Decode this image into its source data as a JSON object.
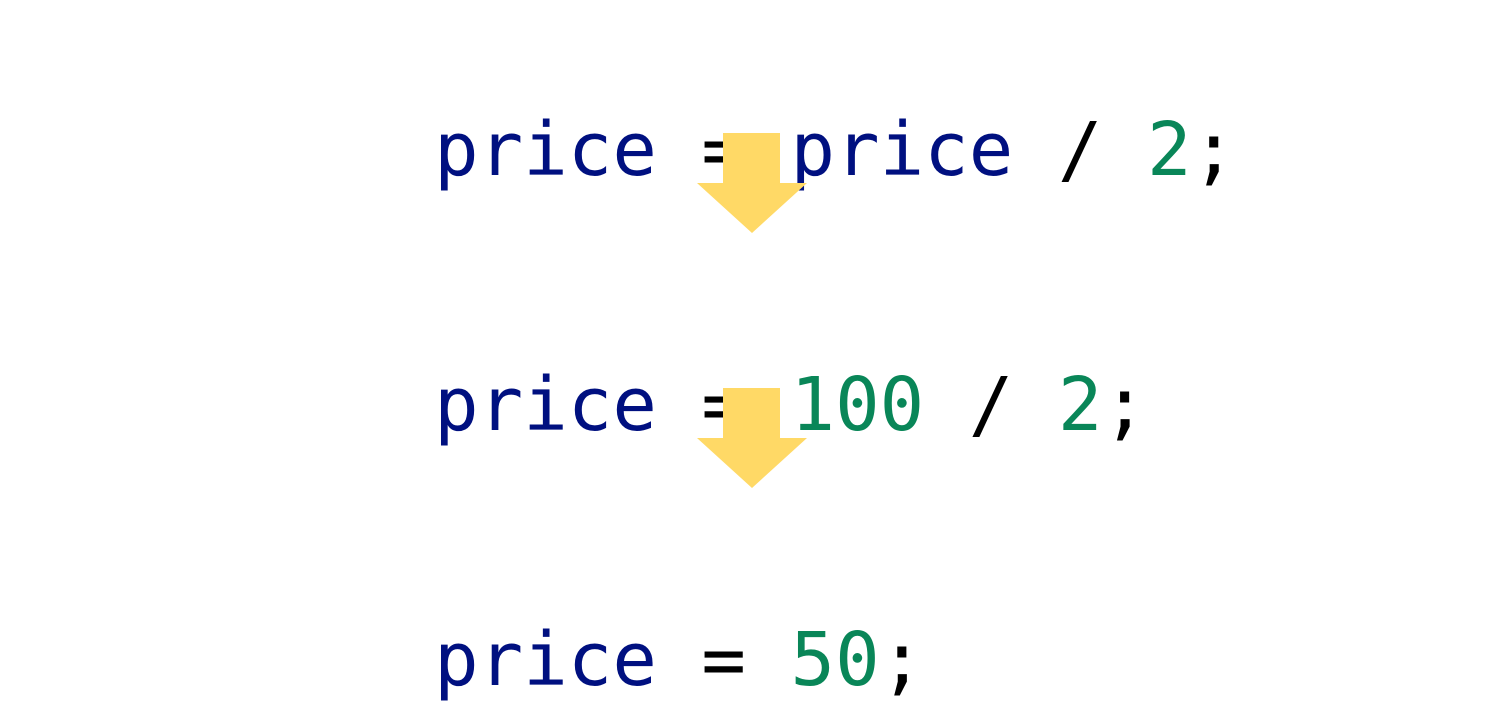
{
  "colors": {
    "identifier": "#001080",
    "number": "#098658",
    "operator": "#000000",
    "arrow": "#FFD966"
  },
  "lines": [
    {
      "tokens": [
        {
          "text": "price",
          "kind": "identifier"
        },
        {
          "text": " = ",
          "kind": "operator"
        },
        {
          "text": "price",
          "kind": "identifier"
        },
        {
          "text": " / ",
          "kind": "operator"
        },
        {
          "text": "2",
          "kind": "number"
        },
        {
          "text": ";",
          "kind": "operator"
        }
      ]
    },
    {
      "tokens": [
        {
          "text": "price",
          "kind": "identifier"
        },
        {
          "text": " = ",
          "kind": "operator"
        },
        {
          "text": "100",
          "kind": "number"
        },
        {
          "text": " / ",
          "kind": "operator"
        },
        {
          "text": "2",
          "kind": "number"
        },
        {
          "text": ";",
          "kind": "operator"
        }
      ]
    },
    {
      "tokens": [
        {
          "text": "price",
          "kind": "identifier"
        },
        {
          "text": " = ",
          "kind": "operator"
        },
        {
          "text": "50",
          "kind": "number"
        },
        {
          "text": ";",
          "kind": "operator"
        }
      ]
    }
  ],
  "arrows": [
    {
      "icon": "down-arrow-icon"
    },
    {
      "icon": "down-arrow-icon"
    }
  ]
}
